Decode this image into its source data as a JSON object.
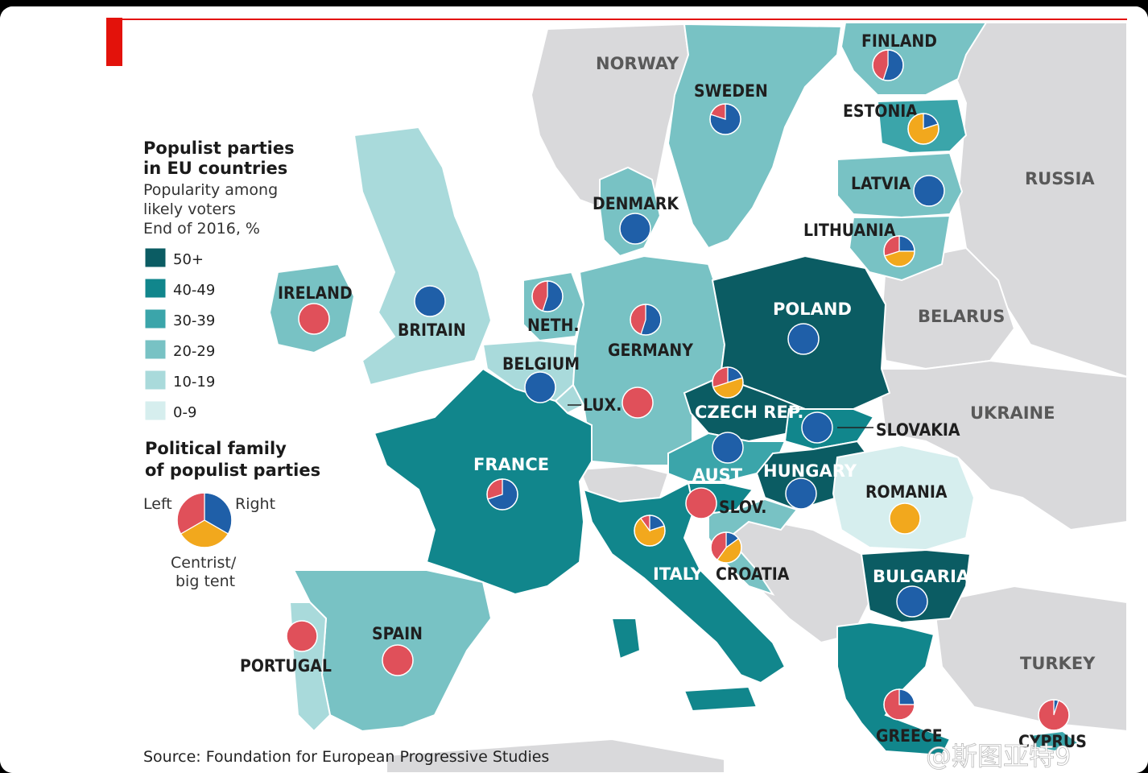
{
  "legend": {
    "title_line1": "Populist parties",
    "title_line2": "in EU countries",
    "subtitle_line1": "Popularity among",
    "subtitle_line2": "likely voters",
    "subtitle_line3": "End of 2016, %",
    "bins": [
      {
        "label": "50+",
        "color": "#0b5c63"
      },
      {
        "label": "40-49",
        "color": "#11868c"
      },
      {
        "label": "30-39",
        "color": "#3ba5aa"
      },
      {
        "label": "20-29",
        "color": "#78c2c4"
      },
      {
        "label": "10-19",
        "color": "#a9dadb"
      },
      {
        "label": "0-9",
        "color": "#d6eeee"
      }
    ],
    "family_title_line1": "Political family",
    "family_title_line2": "of populist parties",
    "family_left": "Left",
    "family_right": "Right",
    "family_centrist_line1": "Centrist/",
    "family_centrist_line2": "big tent",
    "party_colors": {
      "left": "#e0505a",
      "right": "#1f5fa8",
      "centrist": "#f2a81d"
    }
  },
  "source": "Source: Foundation for European Progressive Studies",
  "watermark": "@斯图亚特9",
  "non_eu_labels": {
    "norway": "NORWAY",
    "russia": "RUSSIA",
    "belarus": "BELARUS",
    "ukraine": "UKRAINE",
    "turkey": "TURKEY"
  },
  "countries": [
    {
      "id": "finland",
      "name": "FINLAND",
      "bin": "20-29",
      "left": 0.45,
      "right": 0.55,
      "centrist": 0
    },
    {
      "id": "sweden",
      "name": "SWEDEN",
      "bin": "20-29",
      "left": 0.2,
      "right": 0.8,
      "centrist": 0
    },
    {
      "id": "estonia",
      "name": "ESTONIA",
      "bin": "30-39",
      "left": 0,
      "right": 0.2,
      "centrist": 0.8
    },
    {
      "id": "latvia",
      "name": "LATVIA",
      "bin": "20-29",
      "left": 0,
      "right": 1,
      "centrist": 0
    },
    {
      "id": "lithuania",
      "name": "LITHUANIA",
      "bin": "20-29",
      "left": 0.3,
      "right": 0.25,
      "centrist": 0.45
    },
    {
      "id": "denmark",
      "name": "DENMARK",
      "bin": "20-29",
      "left": 0,
      "right": 1,
      "centrist": 0
    },
    {
      "id": "ireland",
      "name": "IRELAND",
      "bin": "20-29",
      "left": 1,
      "right": 0,
      "centrist": 0
    },
    {
      "id": "britain",
      "name": "BRITAIN",
      "bin": "10-19",
      "left": 0,
      "right": 1,
      "centrist": 0
    },
    {
      "id": "netherlands",
      "name": "NETH.",
      "bin": "20-29",
      "left": 0.45,
      "right": 0.55,
      "centrist": 0
    },
    {
      "id": "germany",
      "name": "GERMANY",
      "bin": "20-29",
      "left": 0.45,
      "right": 0.55,
      "centrist": 0
    },
    {
      "id": "belgium",
      "name": "BELGIUM",
      "bin": "10-19",
      "left": 0,
      "right": 1,
      "centrist": 0
    },
    {
      "id": "luxembourg",
      "name": "LUX.",
      "bin": "10-19",
      "left": 1,
      "right": 0,
      "centrist": 0
    },
    {
      "id": "poland",
      "name": "POLAND",
      "bin": "50+",
      "left": 0,
      "right": 1,
      "centrist": 0
    },
    {
      "id": "czech",
      "name": "CZECH REP.",
      "bin": "50+",
      "left": 0.3,
      "right": 0.2,
      "centrist": 0.5
    },
    {
      "id": "slovakia",
      "name": "SLOVAKIA",
      "bin": "40-49",
      "left": 0,
      "right": 1,
      "centrist": 0
    },
    {
      "id": "austria",
      "name": "AUST.",
      "bin": "30-39",
      "left": 0,
      "right": 1,
      "centrist": 0
    },
    {
      "id": "hungary",
      "name": "HUNGARY",
      "bin": "50+",
      "left": 0,
      "right": 1,
      "centrist": 0
    },
    {
      "id": "france",
      "name": "FRANCE",
      "bin": "40-49",
      "left": 0.3,
      "right": 0.7,
      "centrist": 0
    },
    {
      "id": "slovenia",
      "name": "SLOV.",
      "bin": "40-49",
      "left": 1,
      "right": 0,
      "centrist": 0
    },
    {
      "id": "croatia",
      "name": "CROATIA",
      "bin": "20-29",
      "left": 0.4,
      "right": 0.15,
      "centrist": 0.45
    },
    {
      "id": "italy",
      "name": "ITALY",
      "bin": "40-49",
      "left": 0.1,
      "right": 0.2,
      "centrist": 0.7
    },
    {
      "id": "romania",
      "name": "ROMANIA",
      "bin": "0-9",
      "left": 0,
      "right": 0,
      "centrist": 1
    },
    {
      "id": "bulgaria",
      "name": "BULGARIA",
      "bin": "50+",
      "left": 0,
      "right": 1,
      "centrist": 0
    },
    {
      "id": "greece",
      "name": "GREECE",
      "bin": "40-49",
      "left": 0.75,
      "right": 0.25,
      "centrist": 0
    },
    {
      "id": "cyprus",
      "name": "CYPRUS",
      "bin": "30-39",
      "left": 0.95,
      "right": 0.05,
      "centrist": 0
    },
    {
      "id": "spain",
      "name": "SPAIN",
      "bin": "20-29",
      "left": 1,
      "right": 0,
      "centrist": 0
    },
    {
      "id": "portugal",
      "name": "PORTUGAL",
      "bin": "10-19",
      "left": 1,
      "right": 0,
      "centrist": 0
    }
  ]
}
